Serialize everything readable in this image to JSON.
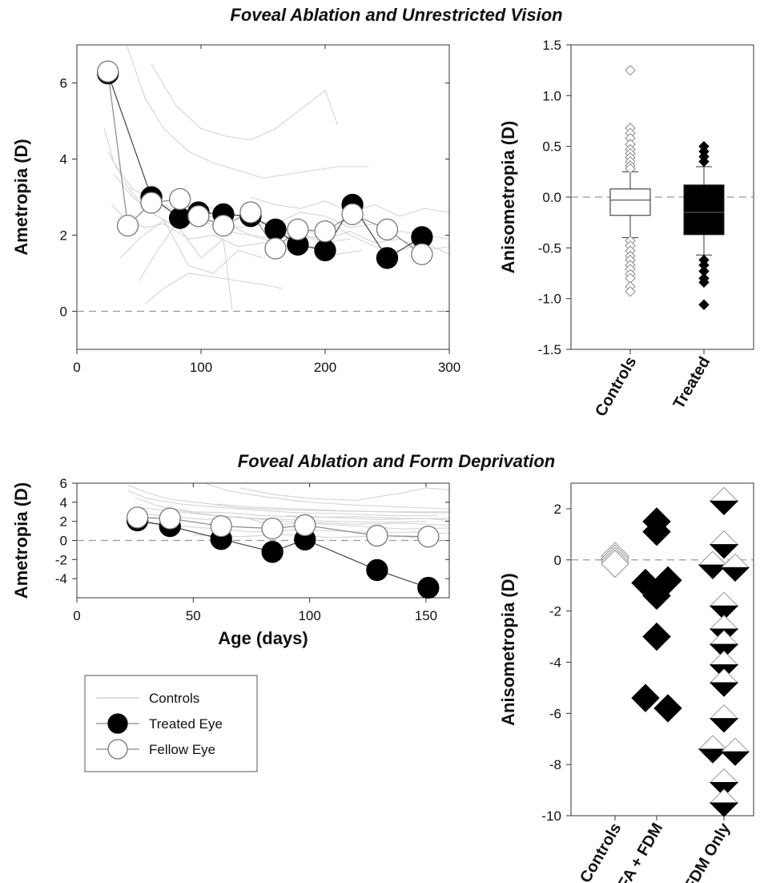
{
  "sections": [
    {
      "title": "Foveal Ablation and Unrestricted Vision"
    },
    {
      "title": "Foveal Ablation and Form Deprivation"
    }
  ],
  "colors": {
    "treated": "#000000",
    "fellow": "#ffffff",
    "controls": "#d4d4d4",
    "zero_line": "#9a9a9a",
    "connector": "#8a8a8a"
  },
  "chart_data": [
    {
      "id": "top-left",
      "type": "line",
      "title": "Foveal Ablation and Unrestricted Vision",
      "xlabel": "",
      "ylabel": "Ametropia (D)",
      "xlim": [
        0,
        300
      ],
      "ylim": [
        -1,
        7
      ],
      "xticks": [
        "0",
        "100",
        "200",
        "300"
      ],
      "yticks": [
        "0",
        "2",
        "4",
        "6"
      ],
      "zero_line": true,
      "series": [
        {
          "role": "treated",
          "marker": "filled-circle",
          "x": [
            25,
            60,
            83,
            98,
            118,
            140,
            160,
            178,
            200,
            222,
            250,
            278
          ],
          "y": [
            6.25,
            3.0,
            2.45,
            2.6,
            2.55,
            2.5,
            2.15,
            1.75,
            1.6,
            2.8,
            1.4,
            1.95
          ]
        },
        {
          "role": "fellow",
          "marker": "open-circle",
          "x": [
            25,
            41,
            60,
            83,
            98,
            118,
            140,
            160,
            178,
            200,
            222,
            250,
            278
          ],
          "y": [
            6.3,
            2.25,
            2.85,
            2.95,
            2.5,
            2.25,
            2.6,
            1.65,
            2.15,
            2.1,
            2.55,
            2.15,
            1.5
          ]
        },
        {
          "role": "controls",
          "marker": "line",
          "lines": [
            {
              "x": [
                22,
                30,
                45,
                60,
                80,
                100,
                120,
                140,
                160
              ],
              "y": [
                4.8,
                3.9,
                3.2,
                3.0,
                2.6,
                2.4,
                2.3,
                2.0,
                1.8
              ]
            },
            {
              "x": [
                25,
                40,
                55,
                70,
                90,
                110,
                130,
                150,
                170,
                190
              ],
              "y": [
                4.2,
                3.3,
                2.7,
                2.8,
                2.4,
                2.5,
                2.2,
                2.3,
                2.0,
                2.1
              ]
            },
            {
              "x": [
                30,
                45,
                60,
                80,
                100,
                120,
                140,
                160,
                180,
                200,
                220
              ],
              "y": [
                3.6,
                3.0,
                2.6,
                2.2,
                2.4,
                2.1,
                2.0,
                1.9,
                2.0,
                1.8,
                1.9
              ]
            },
            {
              "x": [
                28,
                40,
                55,
                70,
                90,
                110,
                130,
                150,
                170,
                190,
                210,
                230
              ],
              "y": [
                2.8,
                2.4,
                2.2,
                2.3,
                1.9,
                2.0,
                1.7,
                1.8,
                1.6,
                1.7,
                1.5,
                1.6
              ]
            },
            {
              "x": [
                40,
                55,
                70,
                90,
                110,
                130,
                150,
                170,
                190,
                210,
                235
              ],
              "y": [
                7.0,
                5.6,
                4.8,
                4.2,
                3.9,
                3.7,
                3.5,
                3.6,
                3.7,
                3.8,
                3.8
              ]
            },
            {
              "x": [
                60,
                80,
                100,
                120,
                140,
                160,
                180,
                200,
                210
              ],
              "y": [
                6.5,
                5.4,
                4.8,
                4.6,
                4.5,
                4.8,
                5.3,
                5.8,
                4.9
              ]
            },
            {
              "x": [
                35,
                50,
                70,
                90,
                110,
                130,
                150
              ],
              "y": [
                1.4,
                1.9,
                2.4,
                1.2,
                1.0,
                1.6,
                1.4
              ]
            },
            {
              "x": [
                50,
                65,
                80,
                100,
                118,
                125
              ],
              "y": [
                0.8,
                1.6,
                2.3,
                1.4,
                1.9,
                0.05
              ]
            },
            {
              "x": [
                55,
                70,
                90,
                110,
                130,
                150,
                165
              ],
              "y": [
                0.2,
                0.6,
                1.0,
                0.9,
                0.8,
                0.7,
                0.6
              ]
            },
            {
              "x": [
                100,
                120,
                140,
                160,
                180,
                200,
                220,
                240,
                260,
                280,
                300
              ],
              "y": [
                2.8,
                2.6,
                2.4,
                2.3,
                2.6,
                2.5,
                2.2,
                2.3,
                2.1,
                2.0,
                1.9
              ]
            },
            {
              "x": [
                140,
                160,
                180,
                200,
                220,
                240,
                260,
                280,
                300
              ],
              "y": [
                3.0,
                2.8,
                2.7,
                2.9,
                2.6,
                2.8,
                2.5,
                2.7,
                2.6
              ]
            },
            {
              "x": [
                160,
                180,
                200,
                220,
                240,
                260,
                280,
                300
              ],
              "y": [
                2.3,
                2.0,
                1.9,
                2.1,
                1.8,
                1.9,
                1.6,
                1.7
              ]
            },
            {
              "x": [
                200,
                220,
                240,
                260,
                280,
                300
              ],
              "y": [
                2.4,
                2.0,
                1.7,
                1.6,
                1.8,
                1.5
              ]
            }
          ]
        }
      ]
    },
    {
      "id": "top-right",
      "type": "box",
      "ylabel": "Anisometropia (D)",
      "ylim": [
        -1.5,
        1.5
      ],
      "yticks": [
        "-1.5",
        "-1.0",
        "-0.5",
        "0.0",
        "0.5",
        "1.0",
        "1.5"
      ],
      "zero_line": true,
      "categories": [
        "Controls",
        "Treated"
      ],
      "boxes": [
        {
          "label": "Controls",
          "fill": "#ffffff",
          "q1": -0.18,
          "median": -0.03,
          "q3": 0.08,
          "whisker_low": -0.4,
          "whisker_high": 0.25,
          "outliers": [
            1.25,
            0.68,
            0.63,
            0.58,
            0.52,
            0.47,
            0.43,
            0.39,
            0.35,
            0.31,
            0.28,
            -0.43,
            -0.48,
            -0.53,
            -0.58,
            -0.62,
            -0.67,
            -0.71,
            -0.76,
            -0.8,
            -0.88,
            -0.93
          ]
        },
        {
          "label": "Treated",
          "fill": "#000000",
          "q1": -0.37,
          "median": -0.15,
          "q3": 0.12,
          "whisker_low": -0.57,
          "whisker_high": 0.3,
          "outliers": [
            0.5,
            0.45,
            0.4,
            0.35,
            -0.62,
            -0.67,
            -0.73,
            -0.8,
            -0.84,
            -1.06
          ]
        }
      ]
    },
    {
      "id": "bottom-left",
      "type": "line",
      "title": "Foveal Ablation and Form Deprivation",
      "xlabel": "Age (days)",
      "ylabel": "Ametropia (D)",
      "xlim": [
        0,
        160
      ],
      "ylim": [
        -6,
        6
      ],
      "xticks": [
        "0",
        "50",
        "100",
        "150"
      ],
      "yticks": [
        "-4",
        "-2",
        "0",
        "2",
        "4",
        "6"
      ],
      "zero_line": true,
      "legend": {
        "position": "bottom-left",
        "entries": [
          "Controls",
          "Treated Eye",
          "Fellow Eye"
        ]
      },
      "series": [
        {
          "name": "Treated Eye",
          "role": "treated",
          "marker": "filled-circle",
          "x": [
            26,
            40,
            62,
            84,
            98,
            129,
            151
          ],
          "y": [
            2.1,
            1.5,
            0.15,
            -1.2,
            0.1,
            -3.1,
            -4.95
          ]
        },
        {
          "name": "Fellow Eye",
          "role": "fellow",
          "marker": "open-circle",
          "x": [
            26,
            40,
            62,
            84,
            98,
            129,
            151
          ],
          "y": [
            2.4,
            2.3,
            1.5,
            1.25,
            1.6,
            0.5,
            0.4
          ]
        },
        {
          "name": "Controls",
          "role": "controls",
          "marker": "line",
          "lines": [
            {
              "x": [
                22,
                30,
                40,
                55,
                70,
                90,
                110,
                130,
                150,
                160
              ],
              "y": [
                5.8,
                5.0,
                4.3,
                3.9,
                3.4,
                3.2,
                3.1,
                3.0,
                2.9,
                2.9
              ]
            },
            {
              "x": [
                22,
                30,
                45,
                60,
                75,
                95,
                115,
                135,
                155
              ],
              "y": [
                5.2,
                4.4,
                3.8,
                3.5,
                3.2,
                2.9,
                2.8,
                2.6,
                2.6
              ]
            },
            {
              "x": [
                25,
                35,
                50,
                65,
                80,
                100,
                120,
                140,
                160
              ],
              "y": [
                4.5,
                3.6,
                3.0,
                2.9,
                2.6,
                2.4,
                2.5,
                2.3,
                2.3
              ]
            },
            {
              "x": [
                25,
                40,
                55,
                70,
                90,
                110,
                130,
                150
              ],
              "y": [
                3.5,
                3.1,
                2.7,
                2.4,
                2.2,
                2.0,
                1.9,
                2.0
              ]
            },
            {
              "x": [
                28,
                40,
                55,
                70,
                85,
                100,
                120,
                140,
                160
              ],
              "y": [
                2.8,
                2.5,
                2.2,
                2.5,
                1.6,
                1.9,
                1.7,
                1.8,
                1.6
              ]
            },
            {
              "x": [
                30,
                45,
                60,
                75,
                90,
                110,
                130,
                150,
                160
              ],
              "y": [
                1.8,
                1.5,
                1.2,
                0.9,
                1.1,
                1.0,
                0.8,
                0.9,
                0.7
              ]
            },
            {
              "x": [
                55,
                65,
                80,
                100,
                120,
                140,
                160
              ],
              "y": [
                6.0,
                5.2,
                4.6,
                4.0,
                3.7,
                3.5,
                3.3
              ]
            },
            {
              "x": [
                70,
                85,
                100,
                120,
                140,
                150,
                160
              ],
              "y": [
                5.5,
                4.8,
                4.4,
                4.2,
                5.0,
                5.5,
                5.3
              ]
            },
            {
              "x": [
                60,
                75,
                95,
                115,
                135,
                160
              ],
              "y": [
                3.8,
                3.5,
                3.3,
                3.1,
                3.0,
                3.0
              ]
            },
            {
              "x": [
                40,
                60,
                80,
                100,
                120,
                140,
                160
              ],
              "y": [
                3.3,
                2.6,
                2.2,
                1.8,
                1.5,
                1.2,
                1.3
              ]
            },
            {
              "x": [
                50,
                70,
                90,
                110,
                130,
                150
              ],
              "y": [
                0.6,
                0.4,
                0.6,
                0.3,
                0.5,
                0.3
              ]
            },
            {
              "x": [
                90,
                110,
                130,
                150,
                160
              ],
              "y": [
                2.6,
                2.4,
                2.2,
                2.3,
                2.1
              ]
            }
          ]
        }
      ]
    },
    {
      "id": "bottom-right",
      "type": "scatter",
      "ylabel": "Anisometropia (D)",
      "ylim": [
        -10,
        3
      ],
      "yticks": [
        "-10",
        "-8",
        "-6",
        "-4",
        "-2",
        "0",
        "2"
      ],
      "zero_line": true,
      "categories": [
        "Controls",
        "FA + FDM",
        "FDM Only"
      ],
      "groups": [
        {
          "label": "Controls",
          "marker": "open-diamond",
          "points": [
            {
              "dx": 0,
              "y": 0.15
            },
            {
              "dx": 0,
              "y": 0.05
            },
            {
              "dx": 0,
              "y": -0.05
            },
            {
              "dx": 0,
              "y": -0.15
            }
          ]
        },
        {
          "label": "FA + FDM",
          "marker": "filled-diamond",
          "points": [
            {
              "dx": 0,
              "y": 1.5
            },
            {
              "dx": 0,
              "y": 1.1
            },
            {
              "dx": -0.2,
              "y": -0.9
            },
            {
              "dx": 0.2,
              "y": -0.8
            },
            {
              "dx": 0,
              "y": -1.4
            },
            {
              "dx": 0,
              "y": -3.0
            },
            {
              "dx": -0.2,
              "y": -5.4
            },
            {
              "dx": 0.2,
              "y": -5.8
            }
          ]
        },
        {
          "label": "FDM Only",
          "marker": "half-diamond",
          "points": [
            {
              "dx": 0,
              "y": 2.3
            },
            {
              "dx": 0,
              "y": 0.6
            },
            {
              "dx": -0.2,
              "y": -0.2
            },
            {
              "dx": 0.2,
              "y": -0.3
            },
            {
              "dx": 0,
              "y": -1.8
            },
            {
              "dx": 0,
              "y": -2.7
            },
            {
              "dx": 0,
              "y": -3.3
            },
            {
              "dx": 0,
              "y": -4.1
            },
            {
              "dx": 0,
              "y": -4.8
            },
            {
              "dx": 0,
              "y": -6.2
            },
            {
              "dx": -0.2,
              "y": -7.4
            },
            {
              "dx": 0.2,
              "y": -7.5
            },
            {
              "dx": 0,
              "y": -8.7
            },
            {
              "dx": 0,
              "y": -9.5
            }
          ]
        }
      ]
    }
  ]
}
